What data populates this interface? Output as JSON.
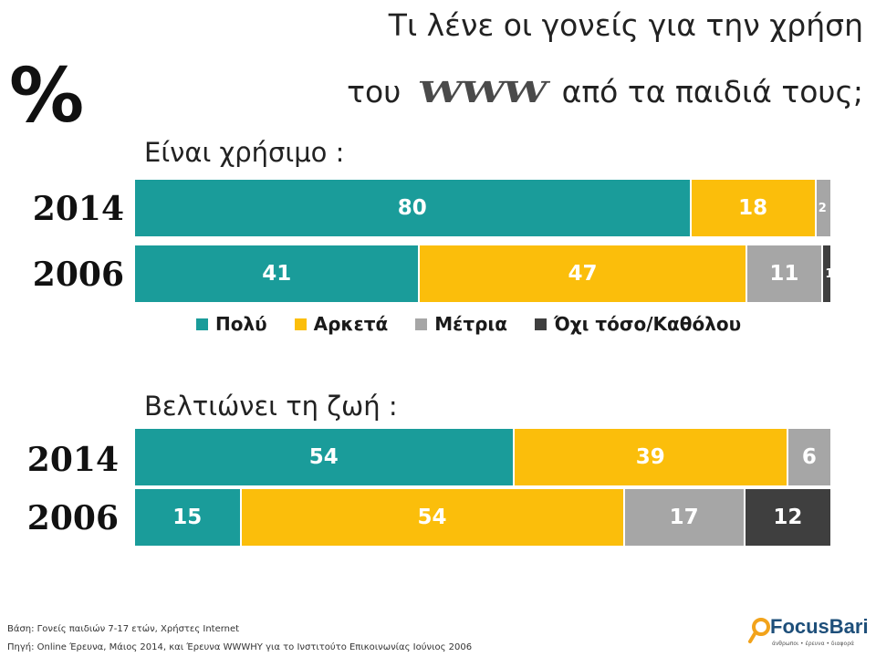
{
  "title": {
    "line1": "Τι λένε οι γονείς για την χρήση",
    "line2_pre": "του",
    "line2_logo": "WWW",
    "line2_post": "από τα  παιδιά τους;"
  },
  "percent_symbol": "%",
  "chart_data": [
    {
      "type": "bar",
      "orientation": "horizontal-stacked-100",
      "title": "Είναι χρήσιμο :",
      "categories": [
        "2014",
        "2006"
      ],
      "series": [
        {
          "name": "Πολύ",
          "values": [
            80,
            41
          ],
          "labels": [
            "80",
            "41"
          ]
        },
        {
          "name": "Αρκετά",
          "values": [
            18,
            47
          ],
          "labels": [
            "18",
            "47"
          ]
        },
        {
          "name": "Μέτρια",
          "values": [
            2,
            11
          ],
          "labels": [
            "2",
            "11"
          ]
        },
        {
          "name": "Όχι τόσο/Καθόλου",
          "values": [
            0,
            1
          ],
          "labels": [
            "",
            "1"
          ]
        }
      ]
    },
    {
      "type": "bar",
      "orientation": "horizontal-stacked-100",
      "title": "Βελτιώνει τη ζωή :",
      "categories": [
        "2014",
        "2006"
      ],
      "series": [
        {
          "name": "Πολύ",
          "values": [
            54,
            15
          ],
          "labels": [
            "54",
            "15"
          ]
        },
        {
          "name": "Αρκετά",
          "values": [
            39,
            54
          ],
          "labels": [
            "39",
            "54"
          ]
        },
        {
          "name": "Μέτρια",
          "values": [
            6,
            17
          ],
          "labels": [
            "6",
            "17"
          ]
        },
        {
          "name": "Όχι τόσο/Καθόλου",
          "values": [
            0,
            12
          ],
          "labels": [
            "",
            "12"
          ]
        }
      ]
    }
  ],
  "colors": {
    "Πολύ": "#1a9c9a",
    "Αρκετά": "#fbbe0b",
    "Μέτρια": "#a6a6a6",
    "Όχι τόσο/Καθόλου": "#3f3f3f"
  },
  "legend": [
    "Πολύ",
    "Αρκετά",
    "Μέτρια",
    "Όχι τόσο/Καθόλου"
  ],
  "footnotes": {
    "base": "Βάση: Γονείς παιδιών 7-17 ετών, Χρήστες Internet",
    "source": "Πηγή: Online Έρευνα, Μάιος 2014, και Έρευνα WWWHY για το Ινστιτούτο Επικοινωνίας Ιούνιος 2006"
  },
  "logo": {
    "name": "FocusBari",
    "tagline": "άνθρωποι • έρευνα • διαφορά"
  }
}
